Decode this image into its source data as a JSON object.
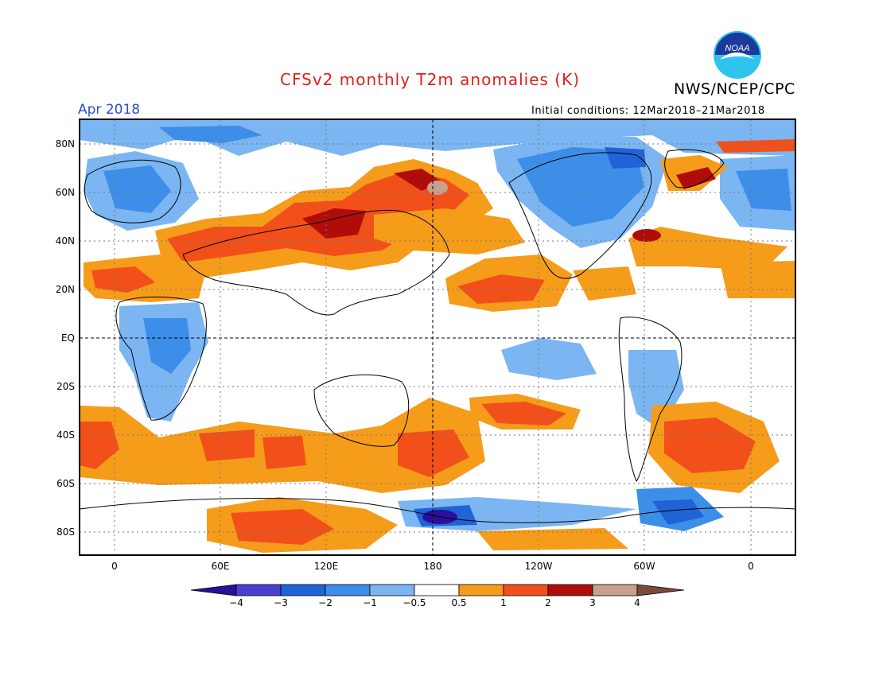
{
  "header": {
    "title": "CFSv2 monthly T2m anomalies (K)",
    "month": "Apr 2018",
    "initial_conditions": "Initial conditions: 12Mar2018–21Mar2018",
    "agency": "NWS/NCEP/CPC",
    "logo_text": "NOAA"
  },
  "axes": {
    "lat_labels": [
      "80N",
      "60N",
      "40N",
      "20N",
      "EQ",
      "20S",
      "40S",
      "60S",
      "80S"
    ],
    "lon_labels": [
      "0",
      "60E",
      "120E",
      "180",
      "120W",
      "60W",
      "0"
    ]
  },
  "colorbar": {
    "labels": [
      "−4",
      "−3",
      "−2",
      "−1",
      "−0.5",
      "0.5",
      "1",
      "2",
      "3",
      "4"
    ],
    "colors": [
      "#2a0f9a",
      "#4a3fcf",
      "#1f63d6",
      "#3d8ee8",
      "#7bb6f2",
      "#ffffff",
      "#f59c1a",
      "#f2501a",
      "#b00d0a",
      "#c8a090",
      "#7a4a3a"
    ]
  }
}
